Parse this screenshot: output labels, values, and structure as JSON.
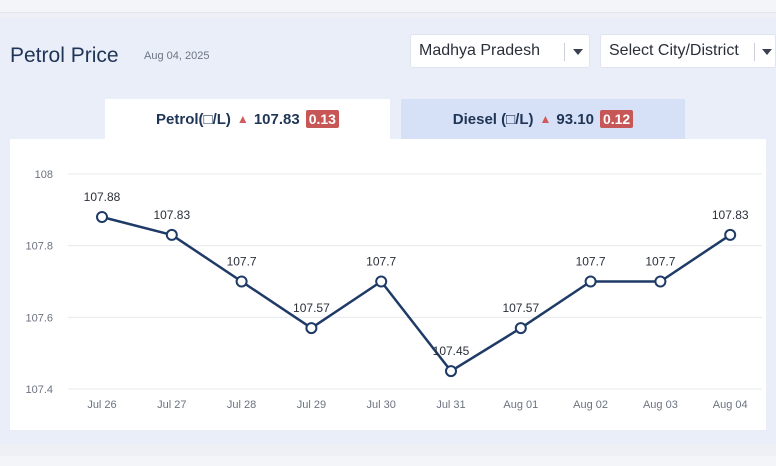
{
  "header": {
    "title": "Petrol Price",
    "date": "Aug 04, 2025"
  },
  "filters": {
    "state": "Madhya Pradesh",
    "city": "Select City/District"
  },
  "tabs": {
    "petrol": {
      "label": "Petrol(□/L)",
      "arrow": "▲",
      "price": "107.83",
      "change": "0.13"
    },
    "diesel": {
      "label": "Diesel (□/L)",
      "arrow": "▲",
      "price": "93.10",
      "change": "0.12"
    }
  },
  "colors": {
    "line": "#1e3a66",
    "change_badge": "#c75656",
    "active_tab": "#ffffff",
    "inactive_tab": "#d6e0f6"
  },
  "chart_data": {
    "type": "line",
    "categories": [
      "Jul 26",
      "Jul 27",
      "Jul 28",
      "Jul 29",
      "Jul 30",
      "Jul 31",
      "Aug 01",
      "Aug 02",
      "Aug 03",
      "Aug 04"
    ],
    "values": [
      107.88,
      107.83,
      107.7,
      107.57,
      107.7,
      107.45,
      107.57,
      107.7,
      107.7,
      107.83
    ],
    "data_labels": [
      "107.88",
      "107.83",
      "107.7",
      "107.57",
      "107.7",
      "107.45",
      "107.57",
      "107.7",
      "107.7",
      "107.83"
    ],
    "yticks": [
      "107.4",
      "107.6",
      "107.8",
      "108"
    ],
    "ytick_values": [
      107.4,
      107.6,
      107.8,
      108.0
    ],
    "ylim": [
      107.4,
      108.0
    ],
    "grid": true,
    "title": "",
    "xlabel": "",
    "ylabel": ""
  }
}
